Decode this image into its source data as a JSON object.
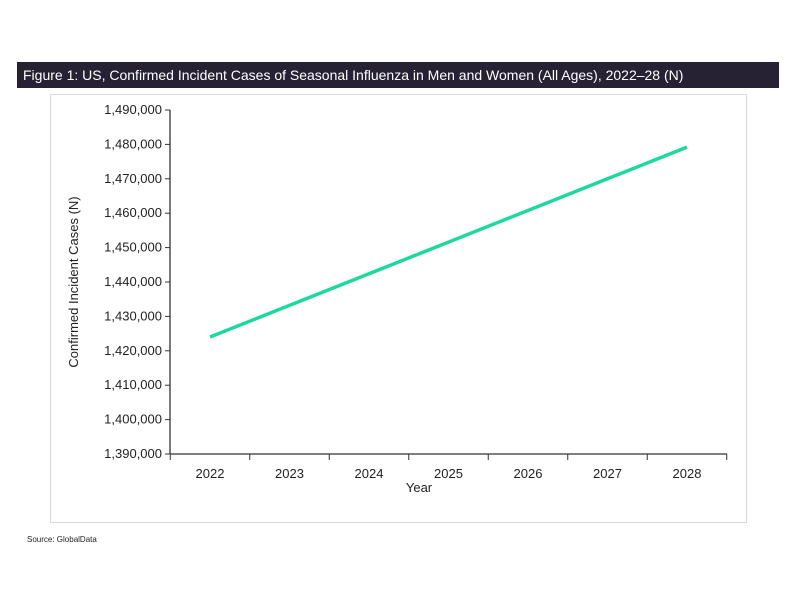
{
  "figure_title": "Figure 1: US, Confirmed Incident Cases of Seasonal Influenza in Men and Women (All Ages), 2022–28 (N)",
  "source": "Source: GlobalData",
  "colors": {
    "line": "#1fd8a0",
    "titlebar": "#272233"
  },
  "chart_data": {
    "type": "line",
    "title": "Figure 1: US, Confirmed Incident Cases of Seasonal Influenza in Men and Women (All Ages), 2022–28 (N)",
    "xlabel": "Year",
    "ylabel": "Confirmed Incident Cases (N)",
    "x": [
      "2022",
      "2023",
      "2024",
      "2025",
      "2026",
      "2027",
      "2028"
    ],
    "series": [
      {
        "name": "Confirmed Incident Cases",
        "values": [
          1424000,
          1433200,
          1442400,
          1451600,
          1460800,
          1470000,
          1479200
        ]
      }
    ],
    "ylim": [
      1390000,
      1490000
    ],
    "yticks": [
      "1,390,000",
      "1,400,000",
      "1,410,000",
      "1,420,000",
      "1,430,000",
      "1,440,000",
      "1,450,000",
      "1,460,000",
      "1,470,000",
      "1,480,000",
      "1,490,000"
    ],
    "grid": false,
    "legend": "none"
  }
}
